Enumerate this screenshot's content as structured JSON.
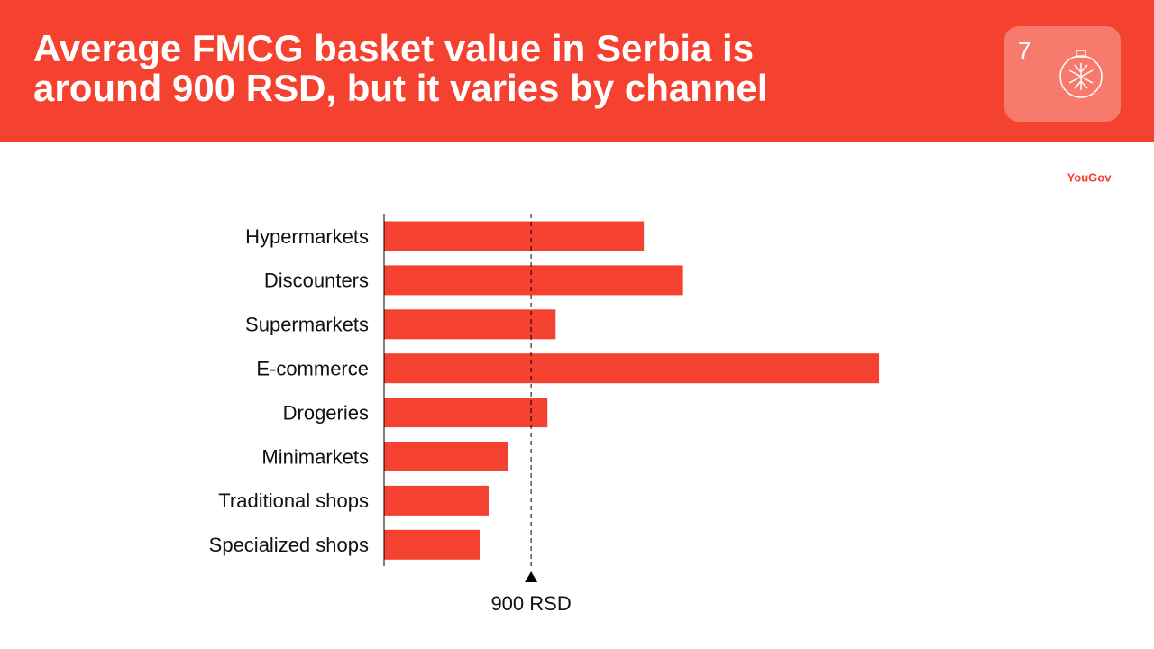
{
  "slide": {
    "page_number": "7",
    "brand": "YouGov"
  },
  "chart_data": {
    "type": "bar",
    "orientation": "horizontal",
    "title": "Average FMCG basket value in Serbia is around 900 RSD, but it varies by channel",
    "categories": [
      "Hypermarkets",
      "Discounters",
      "Supermarkets",
      "E-commerce",
      "Drogeries",
      "Minimarkets",
      "Traditional shops",
      "Specialized shops"
    ],
    "values": [
      1590,
      1830,
      1050,
      3030,
      1000,
      760,
      640,
      585
    ],
    "color": "#f5412f",
    "xlim": [
      0,
      3300
    ],
    "reference_line": {
      "value": 900,
      "label": "900 RSD"
    }
  }
}
